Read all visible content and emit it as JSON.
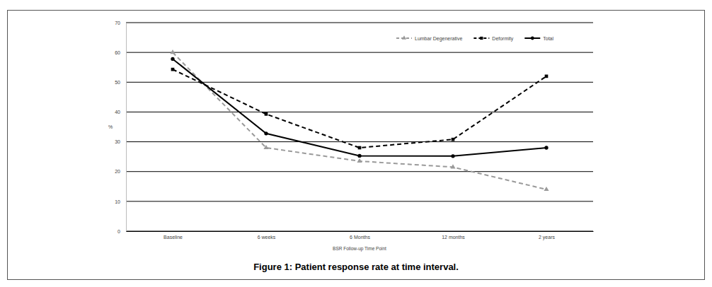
{
  "chart_data": {
    "type": "line",
    "title": "Figure 1: Patient response rate at time interval.",
    "x_label": "BSR Follow-up Time Point",
    "y_label": "%",
    "categories": [
      "Baseline",
      "6 weeks",
      "6 Months",
      "12 months",
      "2 years"
    ],
    "series": [
      {
        "name": "Lumbar Degenerative",
        "color": "#9a9a9a",
        "line_style": "dashed",
        "marker": "triangle",
        "values": [
          60,
          28,
          23.5,
          21.5,
          14
        ]
      },
      {
        "name": "Deformity",
        "color": "#000000",
        "line_style": "dashed",
        "marker": "square",
        "values": [
          54.3,
          39.3,
          28,
          30.8,
          52
        ]
      },
      {
        "name": "Total",
        "color": "#000000",
        "line_style": "solid",
        "marker": "circle",
        "values": [
          57.8,
          32.8,
          25.3,
          25.2,
          28
        ]
      }
    ],
    "ylim": [
      0,
      70
    ],
    "yticks": [
      0,
      10,
      20,
      30,
      40,
      50,
      60,
      70
    ],
    "grid": true,
    "legend": "top-right"
  }
}
